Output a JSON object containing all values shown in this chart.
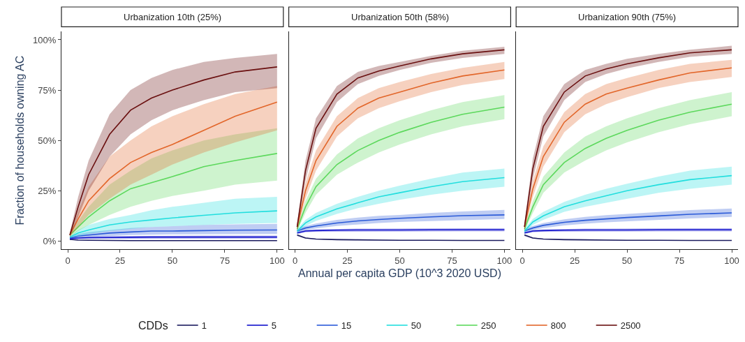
{
  "chart_data": [
    {
      "type": "line",
      "title": "Urbanization 10th (25%)",
      "ylabel": "Fraction of households owning AC",
      "legend": "bottom",
      "legend_title": "CDDs",
      "grid": false,
      "marker": "none",
      "line_style": "solid",
      "xlim": [
        -3,
        103
      ],
      "xticks": [
        0,
        25,
        50,
        75,
        100
      ],
      "ylim": [
        -4,
        104
      ],
      "yticks": [
        {
          "value": 0,
          "label": "0%"
        },
        {
          "value": 25,
          "label": "25%"
        },
        {
          "value": 50,
          "label": "50%"
        },
        {
          "value": 75,
          "label": "75%"
        },
        {
          "value": 100,
          "label": "100%"
        }
      ],
      "x": [
        1,
        5,
        10,
        20,
        30,
        40,
        50,
        65,
        80,
        100
      ],
      "series": [
        {
          "name": "1",
          "color": "#1b1b5e",
          "values": [
            0.8,
            0.5,
            0.4,
            0.3,
            0.2,
            0.2,
            0.2,
            0.2,
            0.2,
            0.2
          ],
          "lower": [
            0.6,
            0.4,
            0.3,
            0.2,
            0.1,
            0.1,
            0.1,
            0.1,
            0.1,
            0.1
          ],
          "upper": [
            1,
            0.6,
            0.5,
            0.4,
            0.3,
            0.3,
            0.3,
            0.3,
            0.3,
            0.3
          ]
        },
        {
          "name": "5",
          "color": "#1010cc",
          "values": [
            1.2,
            1.5,
            1.7,
            1.8,
            1.9,
            2,
            2,
            2,
            2,
            2
          ],
          "lower": [
            0.8,
            1,
            1.1,
            1.2,
            1.3,
            1.3,
            1.3,
            1.3,
            1.3,
            1.3
          ],
          "upper": [
            1.6,
            2,
            2.3,
            2.5,
            2.6,
            2.7,
            2.7,
            2.7,
            2.7,
            2.7
          ]
        },
        {
          "name": "15",
          "color": "#2a5ad8",
          "values": [
            1.5,
            2.5,
            3,
            4,
            4.5,
            5,
            5,
            5.2,
            5.4,
            5.5
          ],
          "lower": [
            1,
            1.8,
            2,
            2.5,
            3,
            3.2,
            3.3,
            3.4,
            3.5,
            3.5
          ],
          "upper": [
            2,
            3.5,
            4.5,
            5.5,
            6.5,
            7,
            7.5,
            8,
            8.3,
            8.5
          ]
        },
        {
          "name": "50",
          "color": "#22dede",
          "values": [
            2,
            4,
            5.5,
            8,
            9.5,
            10.5,
            11.5,
            12.8,
            14,
            15
          ],
          "lower": [
            1.5,
            2.5,
            3.5,
            5,
            6,
            7,
            7.5,
            8,
            8.5,
            9
          ],
          "upper": [
            2.5,
            5.5,
            8,
            11,
            13,
            15.3,
            17,
            19,
            21,
            22
          ]
        },
        {
          "name": "250",
          "color": "#5cd85c",
          "values": [
            3,
            7,
            12,
            20,
            26,
            29,
            32,
            37,
            40,
            43.5
          ],
          "lower": [
            2,
            5,
            8,
            13,
            17,
            20,
            22.4,
            25,
            28,
            30
          ],
          "upper": [
            4,
            10,
            17,
            28,
            35,
            41,
            45,
            50,
            53,
            56
          ]
        },
        {
          "name": "800",
          "color": "#e2662a",
          "values": [
            3,
            11,
            20,
            31,
            39,
            44,
            48,
            55,
            62,
            69
          ],
          "lower": [
            2,
            7,
            13,
            21,
            28,
            33,
            38,
            44,
            49,
            55
          ],
          "upper": [
            4,
            15,
            27,
            42,
            50,
            57,
            62,
            68,
            73,
            77
          ]
        },
        {
          "name": "2500",
          "color": "#6a1010",
          "values": [
            3,
            17,
            33,
            53,
            65,
            71,
            75,
            80,
            84,
            86.5
          ],
          "lower": [
            2,
            12,
            25,
            42,
            53,
            60,
            65,
            70,
            74,
            76
          ],
          "upper": [
            4,
            22,
            40,
            63,
            75,
            81,
            85,
            89,
            91,
            93
          ]
        }
      ]
    },
    {
      "type": "line",
      "title": "Urbanization 50th (58%)",
      "xlabel": "Annual per capita GDP (10^3 2020 USD)",
      "tick_labels": "x",
      "grid": false,
      "marker": "none",
      "line_style": "solid",
      "xlim": [
        -3,
        103
      ],
      "xticks": [
        0,
        25,
        50,
        75,
        100
      ],
      "ylim": [
        -4,
        104
      ],
      "x": [
        1,
        5,
        10,
        20,
        30,
        40,
        50,
        65,
        80,
        100
      ],
      "series": [
        {
          "name": "1",
          "color": "#1b1b5e",
          "values": [
            3,
            1.5,
            1,
            0.7,
            0.6,
            0.5,
            0.4,
            0.4,
            0.3,
            0.3
          ],
          "lower": [
            2.5,
            1.2,
            0.8,
            0.5,
            0.4,
            0.3,
            0.3,
            0.2,
            0.2,
            0.2
          ],
          "upper": [
            3.5,
            1.8,
            1.2,
            0.9,
            0.8,
            0.7,
            0.5,
            0.5,
            0.4,
            0.4
          ]
        },
        {
          "name": "5",
          "color": "#1010cc",
          "values": [
            4,
            5,
            5.2,
            5.4,
            5.5,
            5.5,
            5.5,
            5.6,
            5.6,
            5.6
          ],
          "lower": [
            3.5,
            4.4,
            4.6,
            4.7,
            4.8,
            4.8,
            4.8,
            4.8,
            4.8,
            4.8
          ],
          "upper": [
            4.5,
            5.6,
            5.8,
            6.1,
            6.2,
            6.2,
            6.3,
            6.3,
            6.4,
            6.4
          ]
        },
        {
          "name": "15",
          "color": "#2a5ad8",
          "values": [
            5,
            6.5,
            7.5,
            9,
            10,
            10.7,
            11.3,
            12,
            12.6,
            13
          ],
          "lower": [
            4,
            5.5,
            6.3,
            7.5,
            8.3,
            9,
            9.5,
            10,
            10.5,
            11
          ],
          "upper": [
            6,
            7.5,
            8.7,
            10.5,
            11.7,
            12.5,
            13,
            14,
            14.7,
            15.5
          ]
        },
        {
          "color": "#22dede",
          "values": [
            5,
            9,
            12,
            16,
            19,
            22,
            24,
            27,
            29.5,
            31.5
          ],
          "lower": [
            4,
            7.5,
            10,
            13.5,
            16.3,
            18.5,
            20.5,
            23,
            25,
            27
          ],
          "upper": [
            6,
            10.5,
            14,
            18.5,
            22,
            25,
            27.5,
            31,
            34,
            36
          ]
        },
        {
          "name": "250",
          "color": "#5cd85c",
          "values": [
            6,
            17,
            27,
            38,
            45,
            50,
            54,
            59,
            63,
            66.5
          ],
          "lower": [
            5,
            14,
            23,
            33,
            39,
            44,
            48,
            53,
            57,
            60.5
          ],
          "upper": [
            7,
            20,
            31,
            43,
            51,
            56,
            60,
            65,
            69,
            72.5
          ]
        },
        {
          "name": "800",
          "color": "#e2662a",
          "values": [
            7,
            25,
            40,
            57,
            66,
            71,
            74,
            78.5,
            82,
            85
          ],
          "lower": [
            5,
            21,
            35,
            52,
            61,
            66,
            69.5,
            74,
            77.5,
            80.5
          ],
          "upper": [
            9,
            29,
            45,
            62,
            71,
            76,
            79,
            83,
            86,
            89
          ]
        },
        {
          "name": "2500",
          "color": "#6a1010",
          "values": [
            7,
            35,
            56,
            73,
            81,
            84.5,
            87,
            90.5,
            93,
            95
          ],
          "lower": [
            5,
            30,
            51,
            69,
            78,
            82,
            85,
            88.5,
            91,
            93
          ],
          "upper": [
            9,
            40,
            61,
            77,
            84,
            87,
            89,
            92,
            94.5,
            96.5
          ]
        }
      ]
    },
    {
      "type": "line",
      "title": "Urbanization 90th (75%)",
      "tick_labels": "x",
      "grid": false,
      "marker": "none",
      "line_style": "solid",
      "xlim": [
        -3,
        103
      ],
      "xticks": [
        0,
        25,
        50,
        75,
        100
      ],
      "ylim": [
        -4,
        104
      ],
      "x": [
        1,
        5,
        10,
        20,
        30,
        40,
        50,
        65,
        80,
        100
      ],
      "series": [
        {
          "name": "1",
          "color": "#1b1b5e",
          "values": [
            3,
            1.5,
            1,
            0.7,
            0.6,
            0.5,
            0.4,
            0.4,
            0.3,
            0.3
          ],
          "lower": [
            2.5,
            1.2,
            0.8,
            0.5,
            0.4,
            0.3,
            0.3,
            0.2,
            0.2,
            0.2
          ],
          "upper": [
            3.5,
            1.8,
            1.2,
            0.9,
            0.8,
            0.7,
            0.5,
            0.5,
            0.4,
            0.4
          ]
        },
        {
          "name": "5",
          "color": "#1010cc",
          "values": [
            4,
            5,
            5.2,
            5.4,
            5.5,
            5.5,
            5.5,
            5.6,
            5.6,
            5.6
          ],
          "lower": [
            3.5,
            4.4,
            4.6,
            4.7,
            4.8,
            4.8,
            4.8,
            4.8,
            4.8,
            4.8
          ],
          "upper": [
            4.5,
            5.6,
            5.8,
            6.1,
            6.2,
            6.2,
            6.3,
            6.3,
            6.4,
            6.4
          ]
        },
        {
          "name": "15",
          "color": "#2a5ad8",
          "values": [
            5,
            6.5,
            7.8,
            9.3,
            10.3,
            11,
            11.7,
            12.5,
            13.3,
            14
          ],
          "lower": [
            4,
            5.5,
            6.5,
            7.8,
            8.6,
            9.3,
            9.8,
            10.5,
            11.2,
            12
          ],
          "upper": [
            6,
            7.5,
            9,
            10.8,
            12,
            12.9,
            13.5,
            14.5,
            15.4,
            16.2
          ]
        },
        {
          "color": "#22dede",
          "values": [
            5,
            9.5,
            12.5,
            17,
            20,
            22.5,
            25,
            28,
            30.5,
            32.5
          ],
          "lower": [
            4,
            8,
            10.5,
            14.5,
            17,
            19,
            21,
            24,
            26,
            28
          ],
          "upper": [
            6,
            11,
            14.5,
            19.5,
            23,
            26,
            28.5,
            32,
            35,
            37
          ]
        },
        {
          "name": "250",
          "color": "#5cd85c",
          "values": [
            6,
            17,
            28,
            39,
            46,
            51,
            55,
            60,
            64,
            68
          ],
          "lower": [
            5,
            14,
            24,
            34,
            40,
            45,
            49,
            54,
            58,
            62
          ],
          "upper": [
            7,
            20,
            32,
            44,
            52,
            57,
            61,
            66,
            70,
            74
          ]
        },
        {
          "name": "800",
          "color": "#e2662a",
          "values": [
            7,
            26,
            42,
            59,
            68,
            73,
            76,
            80,
            83.5,
            86
          ],
          "lower": [
            5,
            22,
            37,
            54,
            63,
            68,
            71.5,
            76,
            79,
            81.5
          ],
          "upper": [
            9,
            30,
            47,
            64,
            73,
            78,
            81,
            85,
            88,
            90
          ]
        },
        {
          "name": "2500",
          "color": "#6a1010",
          "values": [
            7,
            36,
            57,
            74,
            82,
            85.5,
            88,
            91,
            93.5,
            95
          ],
          "lower": [
            5,
            31,
            52,
            70,
            79,
            83,
            85.8,
            89,
            91.5,
            93
          ],
          "upper": [
            9,
            41,
            62,
            78,
            85,
            88,
            90.5,
            93,
            95,
            97
          ]
        }
      ]
    }
  ]
}
